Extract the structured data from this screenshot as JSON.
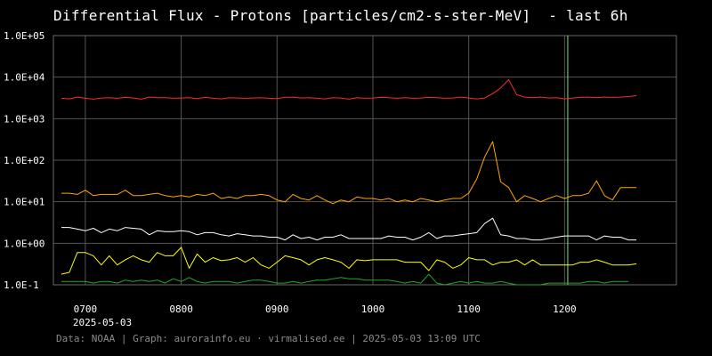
{
  "title": "Differential Flux - Protons [particles/cm2-s-ster-MeV]  - last 6h",
  "footer": "Data: NOAA | Graph: aurorainfo.eu · virmalised.ee | 2025-05-03 13:09 UTC",
  "colors": {
    "background": "#000000",
    "grid": "#555555",
    "marker": "#7fe07f"
  },
  "chart_data": {
    "type": "line",
    "title": "Differential Flux - Protons [particles/cm2-s-ster-MeV]  - last 6h",
    "xlabel": "",
    "ylabel": "",
    "yscale": "log",
    "ylim": [
      0.1,
      100000
    ],
    "ytick_labels": [
      "1.0E+05",
      "1.0E+04",
      "1.0E+03",
      "1.0E+02",
      "1.0E+01",
      "1.0E+00",
      "1.0E-1"
    ],
    "ytick_values": [
      100000,
      10000,
      1000,
      100,
      10,
      1,
      0.1
    ],
    "xlim": [
      "06:40",
      "13:10"
    ],
    "xtick_labels": [
      "0700",
      "0800",
      "0900",
      "1000",
      "1100",
      "1200"
    ],
    "xtick_values": [
      "07:00",
      "08:00",
      "09:00",
      "10:00",
      "11:00",
      "12:00"
    ],
    "date_label": "2025-05-03",
    "grid": true,
    "marker_line_x": "12:02",
    "series": [
      {
        "color": "#ff2a2a",
        "x": [
          "06:45",
          "06:50",
          "06:55",
          "07:00",
          "07:05",
          "07:10",
          "07:15",
          "07:20",
          "07:25",
          "07:30",
          "07:35",
          "07:40",
          "07:45",
          "07:50",
          "07:55",
          "08:00",
          "08:05",
          "08:10",
          "08:15",
          "08:20",
          "08:25",
          "08:30",
          "08:35",
          "08:40",
          "08:45",
          "08:50",
          "08:55",
          "09:00",
          "09:05",
          "09:10",
          "09:15",
          "09:20",
          "09:25",
          "09:30",
          "09:35",
          "09:40",
          "09:45",
          "09:50",
          "09:55",
          "10:00",
          "10:05",
          "10:10",
          "10:15",
          "10:20",
          "10:25",
          "10:30",
          "10:35",
          "10:40",
          "10:45",
          "10:50",
          "10:55",
          "11:00",
          "11:05",
          "11:10",
          "11:15",
          "11:20",
          "11:25",
          "11:30",
          "11:35",
          "11:40",
          "11:45",
          "11:50",
          "11:55",
          "12:00",
          "12:05",
          "12:10",
          "12:15",
          "12:20",
          "12:25",
          "12:30",
          "12:35",
          "12:40",
          "12:45"
        ],
        "values": [
          3100,
          3000,
          3300,
          3100,
          2950,
          3150,
          3200,
          3100,
          3250,
          3150,
          2950,
          3300,
          3200,
          3200,
          3100,
          3150,
          3200,
          3050,
          3250,
          3100,
          3000,
          3200,
          3150,
          3100,
          3150,
          3200,
          3100,
          3050,
          3250,
          3300,
          3150,
          3200,
          3100,
          3000,
          3200,
          3150,
          2950,
          3200,
          3100,
          3150,
          3250,
          3200,
          3100,
          3200,
          3100,
          3150,
          3250,
          3200,
          3100,
          3150,
          3300,
          3150,
          3000,
          3150,
          4000,
          5500,
          8700,
          3800,
          3300,
          3200,
          3300,
          3150,
          3200,
          3000,
          3150,
          3250,
          3300,
          3200,
          3300,
          3250,
          3300,
          3400,
          3600
        ]
      },
      {
        "color": "#ffa500",
        "x": [
          "06:45",
          "06:50",
          "06:55",
          "07:00",
          "07:05",
          "07:10",
          "07:15",
          "07:20",
          "07:25",
          "07:30",
          "07:35",
          "07:40",
          "07:45",
          "07:50",
          "07:55",
          "08:00",
          "08:05",
          "08:10",
          "08:15",
          "08:20",
          "08:25",
          "08:30",
          "08:35",
          "08:40",
          "08:45",
          "08:50",
          "08:55",
          "09:00",
          "09:05",
          "09:10",
          "09:15",
          "09:20",
          "09:25",
          "09:30",
          "09:35",
          "09:40",
          "09:45",
          "09:50",
          "09:55",
          "10:00",
          "10:05",
          "10:10",
          "10:15",
          "10:20",
          "10:25",
          "10:30",
          "10:35",
          "10:40",
          "10:45",
          "10:50",
          "10:55",
          "11:00",
          "11:05",
          "11:10",
          "11:15",
          "11:20",
          "11:25",
          "11:30",
          "11:35",
          "11:40",
          "11:45",
          "11:50",
          "11:55",
          "12:00",
          "12:05",
          "12:10",
          "12:15",
          "12:20",
          "12:25",
          "12:30",
          "12:35",
          "12:40",
          "12:45"
        ],
        "values": [
          16,
          16,
          15,
          19,
          14,
          15,
          15,
          15,
          19,
          14,
          14,
          15,
          16,
          14,
          13,
          14,
          13,
          15,
          14,
          16,
          12,
          13,
          12,
          14,
          14,
          15,
          14,
          11,
          10,
          15,
          12,
          11,
          14,
          11,
          9,
          11,
          10,
          13,
          12,
          12,
          11,
          12,
          10,
          11,
          10,
          12,
          11,
          10,
          11,
          12,
          12,
          16,
          35,
          120,
          280,
          30,
          22,
          10,
          14,
          12,
          10,
          12,
          14,
          12,
          14,
          14,
          16,
          32,
          14,
          11,
          22,
          22,
          22
        ]
      },
      {
        "color": "#ffffff",
        "x": [
          "06:45",
          "06:50",
          "06:55",
          "07:00",
          "07:05",
          "07:10",
          "07:15",
          "07:20",
          "07:25",
          "07:30",
          "07:35",
          "07:40",
          "07:45",
          "07:50",
          "07:55",
          "08:00",
          "08:05",
          "08:10",
          "08:15",
          "08:20",
          "08:25",
          "08:30",
          "08:35",
          "08:40",
          "08:45",
          "08:50",
          "08:55",
          "09:00",
          "09:05",
          "09:10",
          "09:15",
          "09:20",
          "09:25",
          "09:30",
          "09:35",
          "09:40",
          "09:45",
          "09:50",
          "09:55",
          "10:00",
          "10:05",
          "10:10",
          "10:15",
          "10:20",
          "10:25",
          "10:30",
          "10:35",
          "10:40",
          "10:45",
          "10:50",
          "10:55",
          "11:00",
          "11:05",
          "11:10",
          "11:15",
          "11:20",
          "11:25",
          "11:30",
          "11:35",
          "11:40",
          "11:45",
          "11:50",
          "11:55",
          "12:00",
          "12:05",
          "12:10",
          "12:15",
          "12:20",
          "12:25",
          "12:30",
          "12:35",
          "12:40",
          "12:45"
        ],
        "values": [
          2.4,
          2.4,
          2.2,
          2.0,
          2.3,
          1.8,
          2.2,
          2.0,
          2.4,
          2.3,
          2.2,
          1.6,
          2.0,
          1.9,
          1.9,
          2.0,
          1.9,
          1.6,
          1.8,
          1.8,
          1.6,
          1.5,
          1.7,
          1.6,
          1.5,
          1.5,
          1.4,
          1.4,
          1.2,
          1.6,
          1.3,
          1.4,
          1.2,
          1.4,
          1.4,
          1.6,
          1.3,
          1.3,
          1.3,
          1.3,
          1.3,
          1.5,
          1.4,
          1.4,
          1.2,
          1.4,
          1.8,
          1.3,
          1.5,
          1.5,
          1.6,
          1.7,
          1.8,
          3.0,
          4.0,
          1.6,
          1.5,
          1.3,
          1.3,
          1.2,
          1.2,
          1.3,
          1.4,
          1.5,
          1.5,
          1.5,
          1.5,
          1.2,
          1.5,
          1.4,
          1.4,
          1.2,
          1.2
        ]
      },
      {
        "color": "#ffff00",
        "x": [
          "06:45",
          "06:50",
          "06:55",
          "07:00",
          "07:05",
          "07:10",
          "07:15",
          "07:20",
          "07:25",
          "07:30",
          "07:35",
          "07:40",
          "07:45",
          "07:50",
          "07:55",
          "08:00",
          "08:05",
          "08:10",
          "08:15",
          "08:20",
          "08:25",
          "08:30",
          "08:35",
          "08:40",
          "08:45",
          "08:50",
          "08:55",
          "09:00",
          "09:05",
          "09:10",
          "09:15",
          "09:20",
          "09:25",
          "09:30",
          "09:35",
          "09:40",
          "09:45",
          "09:50",
          "09:55",
          "10:00",
          "10:05",
          "10:10",
          "10:15",
          "10:20",
          "10:25",
          "10:30",
          "10:35",
          "10:40",
          "10:45",
          "10:50",
          "10:55",
          "11:00",
          "11:05",
          "11:10",
          "11:15",
          "11:20",
          "11:25",
          "11:30",
          "11:35",
          "11:40",
          "11:45",
          "11:50",
          "11:55",
          "12:00",
          "12:05",
          "12:10",
          "12:15",
          "12:20",
          "12:25",
          "12:30",
          "12:35",
          "12:40",
          "12:45"
        ],
        "values": [
          0.18,
          0.2,
          0.6,
          0.6,
          0.5,
          0.3,
          0.5,
          0.3,
          0.4,
          0.5,
          0.4,
          0.35,
          0.6,
          0.5,
          0.5,
          0.8,
          0.25,
          0.55,
          0.35,
          0.45,
          0.38,
          0.4,
          0.45,
          0.35,
          0.45,
          0.3,
          0.25,
          0.35,
          0.5,
          0.45,
          0.4,
          0.3,
          0.4,
          0.45,
          0.4,
          0.35,
          0.25,
          0.4,
          0.38,
          0.4,
          0.4,
          0.4,
          0.4,
          0.35,
          0.35,
          0.35,
          0.22,
          0.4,
          0.35,
          0.25,
          0.3,
          0.45,
          0.4,
          0.4,
          0.3,
          0.35,
          0.35,
          0.4,
          0.3,
          0.4,
          0.3,
          0.3,
          0.3,
          0.3,
          0.3,
          0.35,
          0.35,
          0.4,
          0.35,
          0.3,
          0.3,
          0.3,
          0.32
        ]
      },
      {
        "color": "#22aa22",
        "x": [
          "06:45",
          "06:50",
          "06:55",
          "07:00",
          "07:05",
          "07:10",
          "07:15",
          "07:20",
          "07:25",
          "07:30",
          "07:35",
          "07:40",
          "07:45",
          "07:50",
          "07:55",
          "08:00",
          "08:05",
          "08:10",
          "08:15",
          "08:20",
          "08:25",
          "08:30",
          "08:35",
          "08:40",
          "08:45",
          "08:50",
          "08:55",
          "09:00",
          "09:05",
          "09:10",
          "09:15",
          "09:20",
          "09:25",
          "09:30",
          "09:35",
          "09:40",
          "09:45",
          "09:50",
          "09:55",
          "10:00",
          "10:05",
          "10:10",
          "10:15",
          "10:20",
          "10:25",
          "10:30",
          "10:35",
          "10:40",
          "10:45",
          "10:50",
          "10:55",
          "11:00",
          "11:05",
          "11:10",
          "11:15",
          "11:20",
          "11:25",
          "11:30",
          "11:35",
          "11:40",
          "11:45",
          "11:50",
          "11:55",
          "12:00",
          "12:05",
          "12:10",
          "12:15",
          "12:20",
          "12:25",
          "12:30",
          "12:35",
          "12:40"
        ],
        "values": [
          0.12,
          0.12,
          0.12,
          0.12,
          0.11,
          0.12,
          0.12,
          0.11,
          0.13,
          0.12,
          0.13,
          0.12,
          0.13,
          0.11,
          0.14,
          0.12,
          0.15,
          0.12,
          0.11,
          0.12,
          0.12,
          0.12,
          0.11,
          0.12,
          0.13,
          0.13,
          0.12,
          0.11,
          0.11,
          0.12,
          0.11,
          0.12,
          0.13,
          0.13,
          0.14,
          0.15,
          0.14,
          0.14,
          0.13,
          0.13,
          0.13,
          0.13,
          0.12,
          0.11,
          0.12,
          0.11,
          0.18,
          0.11,
          0.1,
          0.11,
          0.12,
          0.11,
          0.12,
          0.11,
          0.11,
          0.12,
          0.11,
          0.1,
          0.1,
          0.1,
          0.1,
          0.11,
          0.11,
          0.11,
          0.11,
          0.11,
          0.12,
          0.12,
          0.11,
          0.12,
          0.12,
          0.12
        ]
      }
    ]
  }
}
